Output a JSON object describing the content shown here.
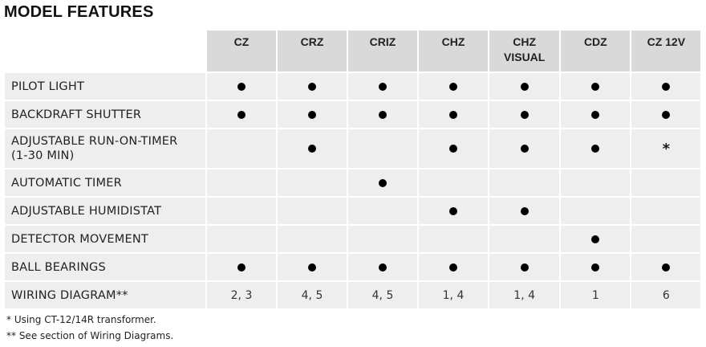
{
  "title": "MODEL FEATURES",
  "columns": [
    "CZ",
    "CRZ",
    "CRIZ",
    "CHZ",
    "CHZ VISUAL",
    "CDZ",
    "CZ 12V"
  ],
  "rows": [
    {
      "label": "PILOT LIGHT",
      "cells": [
        "dot",
        "dot",
        "dot",
        "dot",
        "dot",
        "dot",
        "dot"
      ]
    },
    {
      "label": "BACKDRAFT SHUTTER",
      "cells": [
        "dot",
        "dot",
        "dot",
        "dot",
        "dot",
        "dot",
        "dot"
      ]
    },
    {
      "label": "ADJUSTABLE RUN-ON-TIMER (1-30 MIN)",
      "cells": [
        "",
        "dot",
        "",
        "dot",
        "dot",
        "dot",
        "*"
      ]
    },
    {
      "label": "AUTOMATIC TIMER",
      "cells": [
        "",
        "",
        "dot",
        "",
        "",
        "",
        ""
      ]
    },
    {
      "label": "ADJUSTABLE HUMIDISTAT",
      "cells": [
        "",
        "",
        "",
        "dot",
        "dot",
        "",
        ""
      ]
    },
    {
      "label": "DETECTOR MOVEMENT",
      "cells": [
        "",
        "",
        "",
        "",
        "",
        "dot",
        ""
      ]
    },
    {
      "label": "BALL BEARINGS",
      "cells": [
        "dot",
        "dot",
        "dot",
        "dot",
        "dot",
        "dot",
        "dot"
      ]
    },
    {
      "label": "WIRING DIAGRAM**",
      "cells": [
        "2, 3",
        "4, 5",
        "4, 5",
        "1, 4",
        "1, 4",
        "1",
        "6"
      ]
    }
  ],
  "footnotes": [
    "* Using CT-12/14R transformer.",
    "** See section of Wiring Diagrams."
  ]
}
